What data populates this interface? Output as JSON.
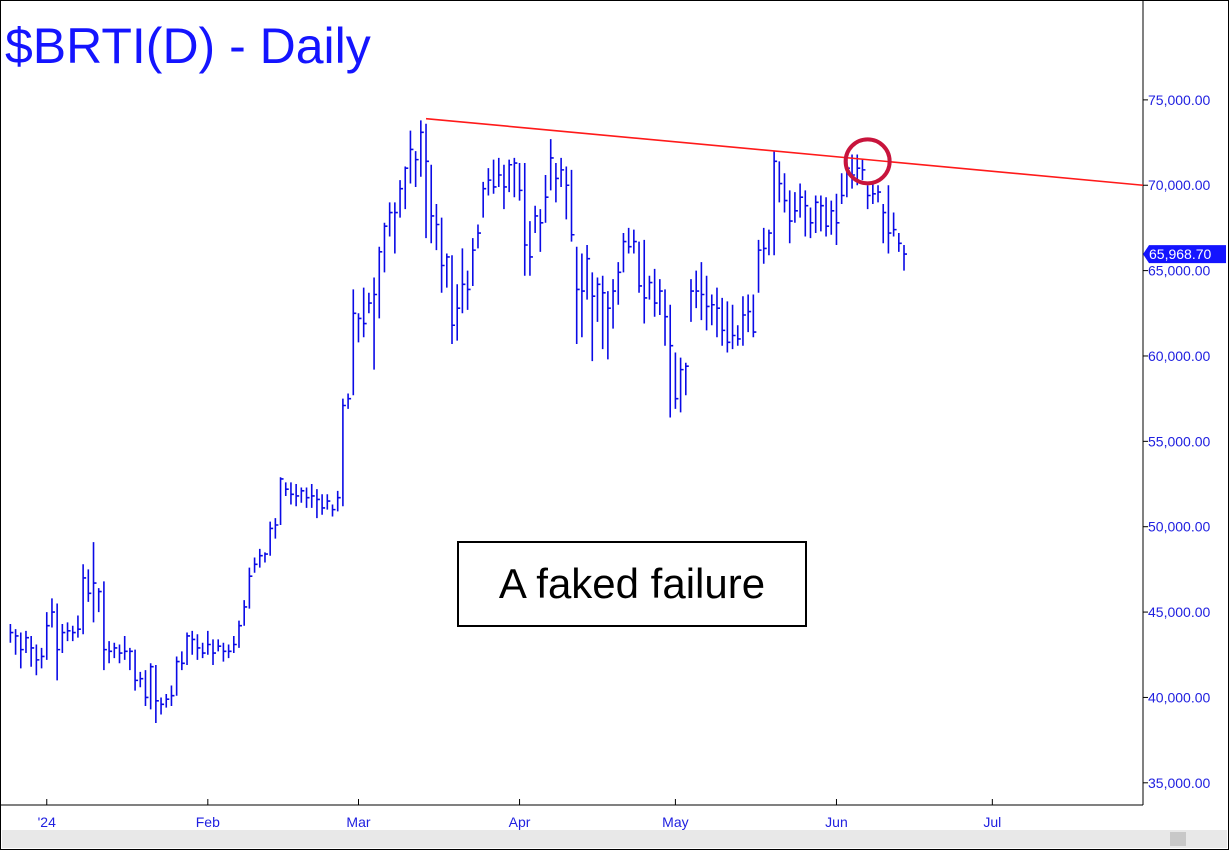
{
  "chart_data": {
    "type": "hlc",
    "title": "$BRTI(D) - Daily",
    "annotation": "A faked failure",
    "color": "#0a0ae6",
    "x": [
      -7,
      -6,
      -5,
      -4,
      -3,
      -2,
      -1,
      0,
      1,
      2,
      3,
      4,
      5,
      6,
      7,
      8,
      9,
      10,
      11,
      12,
      13,
      14,
      15,
      16,
      17,
      18,
      19,
      20,
      21,
      22,
      23,
      24,
      25,
      26,
      27,
      28,
      29,
      30,
      31,
      32,
      33,
      34,
      35,
      36,
      37,
      38,
      39,
      40,
      41,
      42,
      43,
      44,
      45,
      46,
      47,
      48,
      49,
      50,
      51,
      52,
      53,
      54,
      55,
      56,
      57,
      58,
      59,
      60,
      61,
      62,
      63,
      64,
      65,
      66,
      67,
      68,
      69,
      70,
      71,
      72,
      73,
      74,
      75,
      76,
      77,
      78,
      79,
      80,
      81,
      82,
      83,
      84,
      85,
      86,
      87,
      88,
      89,
      90,
      91,
      92,
      93,
      94,
      95,
      96,
      97,
      98,
      99,
      100,
      101,
      102,
      103,
      104,
      105,
      106,
      107,
      108,
      109,
      110,
      111,
      112,
      113,
      114,
      115,
      116,
      117,
      118,
      119,
      120,
      121,
      122,
      123,
      124,
      125,
      126,
      127,
      128,
      129,
      130,
      131,
      132,
      133,
      134,
      135,
      136,
      137,
      138,
      139,
      140,
      141,
      142,
      143,
      144,
      145,
      146,
      147,
      148,
      149,
      150,
      151,
      152,
      153,
      154,
      155,
      156,
      157,
      158,
      159,
      160,
      161,
      162,
      163,
      164,
      165
    ],
    "high": [
      44300,
      44000,
      43800,
      43900,
      43600,
      43100,
      42900,
      45000,
      45800,
      45500,
      44300,
      44400,
      44200,
      44800,
      47800,
      47500,
      49100,
      46400,
      46800,
      43300,
      43200,
      43100,
      43600,
      42900,
      42800,
      41500,
      41600,
      42000,
      41900,
      40000,
      40200,
      40700,
      42400,
      42700,
      43800,
      43900,
      43700,
      43200,
      43900,
      43400,
      43400,
      43200,
      43100,
      43600,
      44500,
      45700,
      47600,
      48200,
      48700,
      48500,
      50300,
      50500,
      52900,
      52600,
      52600,
      52500,
      52300,
      52300,
      52500,
      52200,
      51900,
      51900,
      51300,
      52100,
      57500,
      57800,
      63900,
      62500,
      64000,
      63700,
      64600,
      66400,
      67800,
      69000,
      69000,
      70300,
      71100,
      73200,
      72000,
      73800,
      73600,
      71200,
      68900,
      68100,
      66000,
      65900,
      64200,
      66300,
      65000,
      66900,
      67700,
      70200,
      71000,
      71500,
      71600,
      71200,
      71500,
      71600,
      71300,
      71300,
      67900,
      68800,
      68600,
      70600,
      72700,
      71300,
      71600,
      71100,
      70900,
      66400,
      66000,
      66500,
      64900,
      64600,
      64700,
      63800,
      64500,
      65500,
      67200,
      67500,
      67400,
      66700,
      66800,
      64700,
      65100,
      64500,
      63900,
      63000,
      60200,
      59900,
      59600,
      64500,
      65000,
      65500,
      64700,
      63600,
      64000,
      63400,
      63200,
      63000,
      61800,
      63500,
      63600,
      63600,
      66800,
      67500,
      67400,
      72000,
      71400,
      70700,
      69700,
      69600,
      70100,
      69700,
      68700,
      69400,
      69400,
      69300,
      69100,
      69500,
      70700,
      71500,
      71800,
      71800,
      71500,
      70000,
      70200,
      70000,
      68900,
      70000,
      68400,
      67200,
      66500
    ],
    "low": [
      43200,
      42500,
      41700,
      42600,
      41800,
      41300,
      41700,
      42200,
      44100,
      41000,
      42600,
      43300,
      43300,
      43500,
      43700,
      45600,
      44400,
      45000,
      41600,
      42000,
      42300,
      42000,
      42200,
      41600,
      40400,
      40600,
      39500,
      39300,
      38500,
      39000,
      39400,
      39500,
      40100,
      41600,
      41900,
      42500,
      42200,
      42300,
      42500,
      41900,
      42700,
      42100,
      42300,
      42600,
      42900,
      44200,
      45200,
      47300,
      47600,
      47900,
      48300,
      49300,
      50100,
      51800,
      51300,
      51200,
      51400,
      51100,
      51100,
      50500,
      50700,
      51000,
      50600,
      50900,
      51200,
      56900,
      57700,
      60800,
      61100,
      62500,
      59200,
      62200,
      64900,
      67000,
      66000,
      68100,
      68600,
      70100,
      69900,
      70500,
      66900,
      66600,
      66200,
      63700,
      64000,
      60700,
      60900,
      62500,
      62700,
      64100,
      66300,
      68100,
      69400,
      69500,
      69900,
      68600,
      69600,
      69300,
      69100,
      64700,
      64700,
      67200,
      66100,
      67800,
      69700,
      69000,
      69900,
      68000,
      66700,
      60700,
      61100,
      63300,
      59700,
      62000,
      60400,
      59800,
      61600,
      63000,
      64900,
      66000,
      66000,
      63700,
      61900,
      63300,
      62300,
      62400,
      60600,
      56400,
      56900,
      56700,
      57700,
      62000,
      62800,
      62100,
      61500,
      61800,
      61100,
      60600,
      60200,
      60400,
      60600,
      60600,
      61400,
      61100,
      63700,
      65400,
      65900,
      65900,
      69000,
      68400,
      66600,
      67800,
      68100,
      67000,
      66900,
      67200,
      67300,
      67000,
      67100,
      66500,
      68900,
      69300,
      69800,
      70000,
      70300,
      68600,
      68900,
      69000,
      66600,
      66000,
      67000,
      66100,
      65000
    ],
    "close": [
      43800,
      43600,
      42800,
      43500,
      42900,
      42200,
      42400,
      44200,
      45000,
      42800,
      43800,
      43900,
      43800,
      44000,
      47000,
      46100,
      46700,
      46200,
      42800,
      42700,
      42900,
      42600,
      42700,
      42700,
      41000,
      41100,
      40000,
      41800,
      39800,
      39600,
      39900,
      40100,
      42100,
      42000,
      43600,
      43400,
      42900,
      42600,
      43100,
      42600,
      43000,
      42700,
      42700,
      43100,
      44200,
      45300,
      47100,
      47800,
      48300,
      48400,
      49900,
      50100,
      52800,
      52200,
      51900,
      51800,
      52100,
      51700,
      51800,
      51600,
      51100,
      51500,
      51000,
      51700,
      57100,
      57500,
      62500,
      62200,
      61900,
      63100,
      63600,
      66100,
      67600,
      68400,
      68400,
      69800,
      71000,
      72100,
      71500,
      73100,
      71400,
      68200,
      67700,
      65300,
      65800,
      61800,
      62800,
      64200,
      63900,
      66200,
      67200,
      69800,
      70300,
      69900,
      70600,
      69900,
      71200,
      71300,
      69700,
      66500,
      65800,
      68200,
      67800,
      69300,
      71600,
      70400,
      70900,
      70000,
      67100,
      63900,
      63800,
      65700,
      63500,
      64200,
      63700,
      62800,
      63800,
      64900,
      66700,
      66400,
      66700,
      64100,
      63400,
      64300,
      63100,
      63800,
      62300,
      60600,
      57500,
      59200,
      59400,
      63800,
      63800,
      63600,
      62900,
      63000,
      62800,
      61500,
      60800,
      61200,
      61000,
      62400,
      62600,
      61400,
      66200,
      66300,
      67200,
      71400,
      70100,
      69100,
      67900,
      68500,
      69300,
      68800,
      67800,
      69000,
      68800,
      67600,
      68500,
      67800,
      69400,
      71000,
      70600,
      71000,
      70900,
      69400,
      69500,
      69600,
      68400,
      67200,
      67400,
      66600,
      65968.7
    ],
    "last_label": "65,968.70",
    "trendline": {
      "x": [
        73,
        211
      ],
      "y": [
        73900,
        70000
      ],
      "color": "#ff1a1a"
    },
    "highlight": {
      "x": 158,
      "y": 71400,
      "color": "#c8143c"
    },
    "xlim": [
      -9,
      211
    ],
    "ylim": [
      33700,
      80850
    ],
    "xticks": [
      {
        "value": 0,
        "label": "'24"
      },
      {
        "value": 31,
        "label": "Feb"
      },
      {
        "value": 60,
        "label": "Mar"
      },
      {
        "value": 91,
        "label": "Apr"
      },
      {
        "value": 121,
        "label": "May"
      },
      {
        "value": 152,
        "label": "Jun"
      },
      {
        "value": 182,
        "label": "Jul"
      }
    ],
    "yticks": [
      {
        "value": 35000,
        "label": "35,000.00"
      },
      {
        "value": 40000,
        "label": "40,000.00"
      },
      {
        "value": 45000,
        "label": "45,000.00"
      },
      {
        "value": 50000,
        "label": "50,000.00"
      },
      {
        "value": 55000,
        "label": "55,000.00"
      },
      {
        "value": 60000,
        "label": "60,000.00"
      },
      {
        "value": 65000,
        "label": "65,000.00"
      },
      {
        "value": 70000,
        "label": "70,000.00"
      },
      {
        "value": 75000,
        "label": "75,000.00"
      }
    ]
  }
}
